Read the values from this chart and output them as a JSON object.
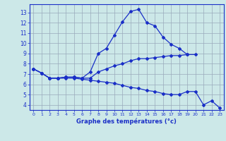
{
  "xlabel": "Graphe des températures (°c)",
  "x": [
    0,
    1,
    2,
    3,
    4,
    5,
    6,
    7,
    8,
    9,
    10,
    11,
    12,
    13,
    14,
    15,
    16,
    17,
    18,
    19,
    20,
    21,
    22,
    23
  ],
  "line1": [
    7.5,
    7.1,
    6.6,
    6.6,
    6.7,
    6.7,
    6.6,
    7.2,
    9.0,
    9.5,
    10.8,
    12.1,
    13.1,
    13.3,
    12.0,
    11.7,
    10.6,
    9.9,
    9.5,
    8.9,
    null,
    null,
    null,
    null
  ],
  "line2": [
    7.5,
    7.1,
    6.6,
    6.6,
    6.7,
    6.7,
    6.6,
    6.6,
    7.2,
    7.5,
    7.8,
    8.0,
    8.3,
    8.5,
    8.5,
    8.6,
    8.7,
    8.8,
    8.8,
    8.9,
    8.9,
    null,
    null,
    null
  ],
  "line3": [
    7.5,
    7.1,
    6.6,
    6.6,
    6.6,
    6.6,
    6.5,
    6.4,
    6.3,
    6.2,
    6.1,
    5.9,
    5.7,
    5.6,
    5.4,
    5.3,
    5.1,
    5.0,
    5.0,
    5.3,
    5.3,
    4.0,
    4.4,
    3.7
  ],
  "line_color": "#1a2fc7",
  "bg_color": "#cce8e8",
  "grid_color": "#99aabb",
  "ylim": [
    3.5,
    13.8
  ],
  "yticks": [
    4,
    5,
    6,
    7,
    8,
    9,
    10,
    11,
    12,
    13
  ],
  "xlim": [
    -0.5,
    23.5
  ],
  "xticks": [
    0,
    1,
    2,
    3,
    4,
    5,
    6,
    7,
    8,
    9,
    10,
    11,
    12,
    13,
    14,
    15,
    16,
    17,
    18,
    19,
    20,
    21,
    22,
    23
  ]
}
